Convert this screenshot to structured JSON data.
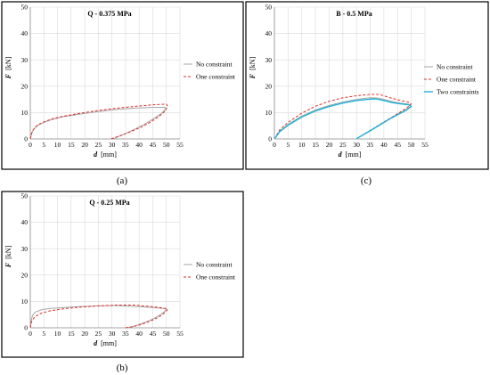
{
  "chart_data": [
    {
      "type": "line",
      "panel_caption": "(a)",
      "title": "Q - 0.375 MPa",
      "xlabel": {
        "var": "d",
        "unit": "[mm]"
      },
      "ylabel": {
        "var": "F",
        "unit": "[kN]"
      },
      "xlim": [
        0,
        55
      ],
      "ylim": [
        0,
        50
      ],
      "xticks": [
        0,
        5,
        10,
        15,
        20,
        25,
        30,
        35,
        40,
        45,
        50,
        55
      ],
      "yticks": [
        0,
        10,
        20,
        30,
        40,
        50
      ],
      "grid": true,
      "legend": "right",
      "series": [
        {
          "name": "No constraint",
          "color": "#a6a6a6",
          "dash": "solid",
          "width": 1,
          "x": [
            0,
            0.5,
            1,
            2,
            3,
            5,
            8,
            12,
            18,
            25,
            32,
            40,
            46,
            49.5,
            49.5,
            48,
            45,
            42,
            38,
            34,
            31,
            30.5
          ],
          "y": [
            0,
            2,
            3.2,
            4.5,
            5.3,
            6.3,
            7.4,
            8.4,
            9.4,
            10.4,
            11.2,
            11.8,
            12.0,
            12.0,
            11.0,
            9.5,
            7.5,
            5.6,
            3.5,
            1.6,
            0.3,
            0
          ]
        },
        {
          "name": "One constraint",
          "color": "#e0302a",
          "dash": "dashed",
          "width": 1,
          "x": [
            0,
            0.5,
            1,
            2,
            3,
            5,
            8,
            12,
            18,
            25,
            32,
            40,
            46,
            50,
            50.5,
            49.5,
            47,
            44,
            41,
            37,
            33,
            30.5,
            29.5
          ],
          "y": [
            0,
            2.2,
            3.4,
            4.7,
            5.5,
            6.5,
            7.6,
            8.6,
            9.7,
            10.8,
            11.7,
            12.5,
            13.0,
            13.2,
            12.5,
            10.5,
            8.3,
            6.3,
            4.6,
            2.8,
            1.2,
            0.3,
            0
          ]
        }
      ]
    },
    {
      "type": "line",
      "panel_caption": "(c)",
      "title": "B - 0.5 MPa",
      "xlabel": {
        "var": "d",
        "unit": "[mm]"
      },
      "ylabel": {
        "var": "F",
        "unit": "[kN]"
      },
      "xlim": [
        0,
        55
      ],
      "ylim": [
        0,
        50
      ],
      "xticks": [
        0,
        5,
        10,
        15,
        20,
        25,
        30,
        35,
        40,
        45,
        50,
        55
      ],
      "yticks": [
        0,
        10,
        20,
        30,
        40,
        50
      ],
      "grid": true,
      "legend": "right",
      "series": [
        {
          "name": "No constraint",
          "color": "#a6a6a6",
          "dash": "solid",
          "width": 1,
          "x": [
            0,
            2,
            5,
            10,
            15,
            20,
            25,
            30,
            35,
            38,
            40,
            43,
            46,
            49,
            50,
            48,
            45,
            42,
            39,
            36,
            33,
            30.5,
            30
          ],
          "y": [
            0,
            3,
            5.5,
            8.7,
            11.0,
            12.7,
            14.0,
            15.0,
            15.6,
            15.5,
            15.0,
            14.2,
            13.6,
            13.2,
            12.5,
            11.0,
            9.4,
            7.6,
            5.7,
            3.8,
            2.0,
            0.4,
            0
          ]
        },
        {
          "name": "One constraint",
          "color": "#e0302a",
          "dash": "dashed",
          "width": 1,
          "x": [
            0,
            2,
            5,
            10,
            15,
            20,
            25,
            30,
            35,
            38,
            40,
            43,
            46,
            49,
            50,
            48,
            45,
            42,
            39,
            36,
            33,
            30.5,
            30
          ],
          "y": [
            0,
            3.5,
            6.3,
            9.8,
            12.4,
            14.3,
            15.6,
            16.4,
            16.9,
            16.9,
            16.4,
            15.4,
            14.6,
            14.0,
            13.2,
            11.5,
            9.6,
            7.7,
            5.8,
            3.9,
            2.0,
            0.4,
            0
          ]
        },
        {
          "name": "Two constraints",
          "color": "#1fb4dc",
          "dash": "solid",
          "width": 1.4,
          "x": [
            0,
            2,
            5,
            10,
            15,
            20,
            25,
            30,
            35,
            37,
            40,
            43,
            46,
            49,
            50,
            48,
            45,
            42,
            39,
            36,
            33,
            30.5,
            30
          ],
          "y": [
            0,
            2.8,
            5.2,
            8.3,
            10.6,
            12.3,
            13.6,
            14.6,
            15.1,
            15.2,
            14.6,
            13.8,
            13.3,
            13.0,
            12.3,
            10.8,
            9.2,
            7.5,
            5.6,
            3.7,
            1.9,
            0.4,
            0
          ]
        }
      ]
    },
    {
      "type": "line",
      "panel_caption": "(b)",
      "title": "Q - 0.25 MPa",
      "xlabel": {
        "var": "d",
        "unit": "[mm]"
      },
      "ylabel": {
        "var": "F",
        "unit": "[kN]"
      },
      "xlim": [
        0,
        55
      ],
      "ylim": [
        0,
        50
      ],
      "xticks": [
        0,
        5,
        10,
        15,
        20,
        25,
        30,
        35,
        40,
        45,
        50,
        55
      ],
      "yticks": [
        0,
        10,
        20,
        30,
        40,
        50
      ],
      "grid": true,
      "legend": "right",
      "series": [
        {
          "name": "No constraint",
          "color": "#a6a6a6",
          "dash": "solid",
          "width": 1,
          "x": [
            0,
            0.5,
            1,
            2,
            4,
            7,
            12,
            18,
            25,
            32,
            40,
            46,
            49.5,
            50,
            49,
            47,
            45,
            42,
            39,
            37,
            35.5,
            35
          ],
          "y": [
            0,
            3.5,
            5.0,
            6.0,
            6.8,
            7.3,
            7.7,
            8.0,
            8.3,
            8.4,
            8.0,
            7.6,
            7.3,
            7.0,
            5.8,
            4.5,
            3.3,
            2.0,
            0.9,
            0.3,
            0.1,
            0
          ]
        },
        {
          "name": "One constraint",
          "color": "#e0302a",
          "dash": "dashed",
          "width": 1,
          "x": [
            0,
            0.5,
            1,
            2,
            4,
            7,
            12,
            18,
            25,
            32,
            38,
            44,
            48,
            50,
            50.5,
            49.5,
            48,
            46,
            43,
            40,
            37,
            35.5,
            35
          ],
          "y": [
            0,
            2.3,
            3.3,
            4.4,
            5.5,
            6.4,
            7.2,
            7.8,
            8.3,
            8.6,
            8.6,
            8.1,
            7.6,
            7.3,
            7.0,
            5.8,
            4.6,
            3.4,
            2.1,
            1.0,
            0.3,
            0.1,
            0
          ]
        }
      ]
    }
  ]
}
